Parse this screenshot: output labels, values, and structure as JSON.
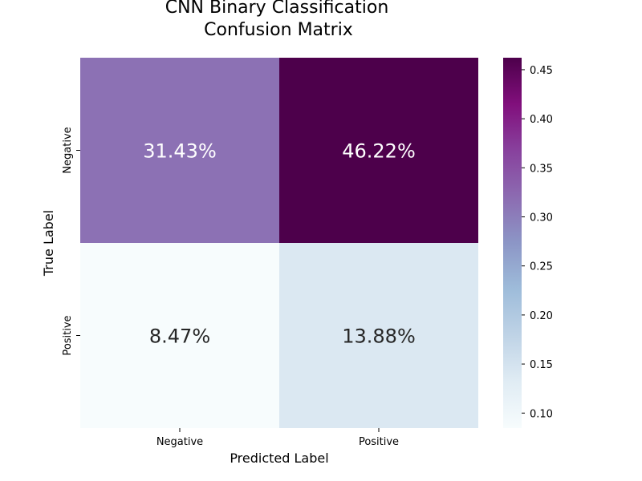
{
  "chart_data": {
    "type": "heatmap",
    "title": [
      "CNN Binary Classification",
      "Confusion Matrix"
    ],
    "xlabel": "Predicted Label",
    "ylabel": "True Label",
    "x_categories": [
      "Negative",
      "Positive"
    ],
    "y_categories": [
      "Negative",
      "Positive"
    ],
    "values": [
      [
        0.3143,
        0.4622
      ],
      [
        0.0847,
        0.1388
      ]
    ],
    "cell_labels": [
      [
        "31.43%",
        "46.22%"
      ],
      [
        "8.47%",
        "13.88%"
      ]
    ],
    "colorbar": {
      "range": [
        0.0847,
        0.4622
      ],
      "ticks": [
        0.1,
        0.15,
        0.2,
        0.25,
        0.3,
        0.35,
        0.4,
        0.45
      ],
      "tick_labels": [
        "0.10",
        "0.15",
        "0.20",
        "0.25",
        "0.30",
        "0.35",
        "0.40",
        "0.45"
      ]
    },
    "colormap": "BuPu",
    "colormap_stops": [
      "#f7fcfd",
      "#e0ecf4",
      "#bfd3e6",
      "#9ebcda",
      "#8c96c6",
      "#8c6bb1",
      "#88419d",
      "#810f7c",
      "#4d004b"
    ]
  }
}
